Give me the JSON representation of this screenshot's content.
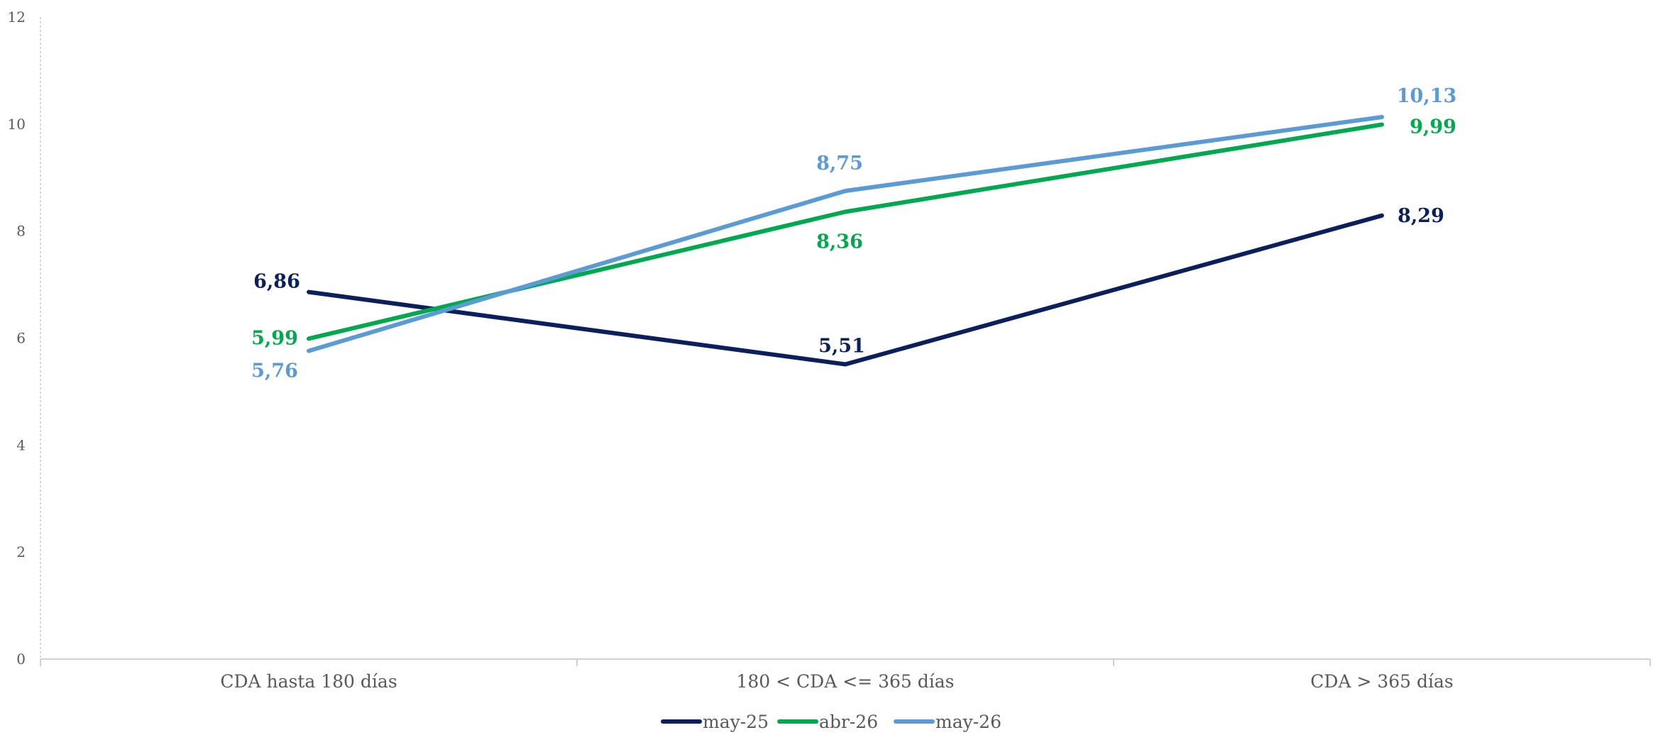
{
  "chart_data": {
    "type": "line",
    "title": "",
    "xlabel": "",
    "ylabel": "",
    "categories": [
      "CDA hasta 180 días",
      "180 < CDA <= 365 días",
      "CDA > 365 días"
    ],
    "ylim": [
      0,
      12
    ],
    "yticks": [
      "0",
      "2",
      "4",
      "6",
      "8",
      "10",
      "12"
    ],
    "grid": false,
    "legend_position": "bottom-center",
    "series": [
      {
        "name": "may-25",
        "color": "#0b1f5c",
        "values": [
          6.86,
          5.51,
          8.29
        ],
        "labels": [
          "6,86",
          "5,51",
          "8,29"
        ]
      },
      {
        "name": "abr-26",
        "color": "#00a94f",
        "values": [
          5.99,
          8.36,
          9.99
        ],
        "labels": [
          "5,99",
          "8,36",
          "9,99"
        ]
      },
      {
        "name": "may-26",
        "color": "#5b9bd5",
        "values": [
          5.76,
          8.75,
          10.13
        ],
        "labels": [
          "5,76",
          "8,75",
          "10,13"
        ]
      }
    ]
  }
}
